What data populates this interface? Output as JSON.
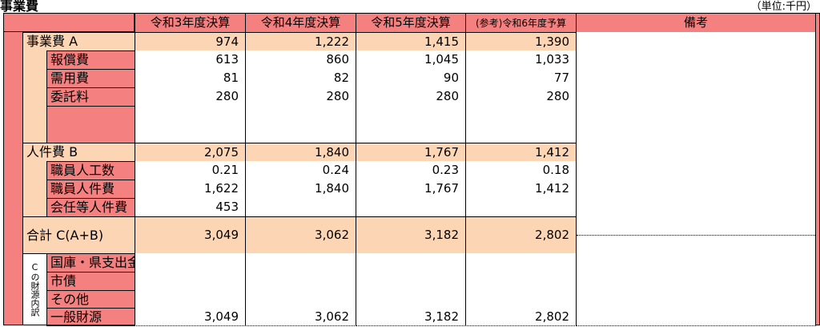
{
  "header": {
    "title": "事業費",
    "unit": "（単位:千円）"
  },
  "table": {
    "columns": [
      "令和3年度決算",
      "令和4年度決算",
      "令和5年度決算",
      "(参考)令和6年度予算",
      "備考"
    ],
    "sections": [
      {
        "label": "事業費 A",
        "values": [
          "974",
          "1,222",
          "1,415",
          "1,390"
        ],
        "items": [
          {
            "label": "報償費",
            "values": [
              "613",
              "860",
              "1,045",
              "1,033"
            ]
          },
          {
            "label": "需用費",
            "values": [
              "81",
              "82",
              "90",
              "77"
            ]
          },
          {
            "label": "委託料",
            "values": [
              "280",
              "280",
              "280",
              "280"
            ]
          }
        ]
      },
      {
        "label": "人件費 B",
        "values": [
          "2,075",
          "1,840",
          "1,767",
          "1,412"
        ],
        "items": [
          {
            "label": "職員人工数",
            "values": [
              "0.21",
              "0.24",
              "0.23",
              "0.18"
            ]
          },
          {
            "label": "職員人件費",
            "values": [
              "1,622",
              "1,840",
              "1,767",
              "1,412"
            ]
          },
          {
            "label": "会任等人件費",
            "values": [
              "453",
              null,
              null,
              null
            ]
          }
        ]
      },
      {
        "label": "合計 C(A+B)",
        "values": [
          "3,049",
          "3,062",
          "3,182",
          "2,802"
        ],
        "items": []
      }
    ],
    "funding": {
      "label": "Cの財源内訳",
      "items": [
        {
          "label": "国庫・県支出金",
          "values": [
            null,
            null,
            null,
            null
          ]
        },
        {
          "label": "市債",
          "values": [
            null,
            null,
            null,
            null
          ]
        },
        {
          "label": "その他",
          "values": [
            null,
            null,
            null,
            null
          ]
        },
        {
          "label": "一般財源",
          "values": [
            "3,049",
            "3,062",
            "3,182",
            "2,802"
          ]
        }
      ]
    }
  }
}
